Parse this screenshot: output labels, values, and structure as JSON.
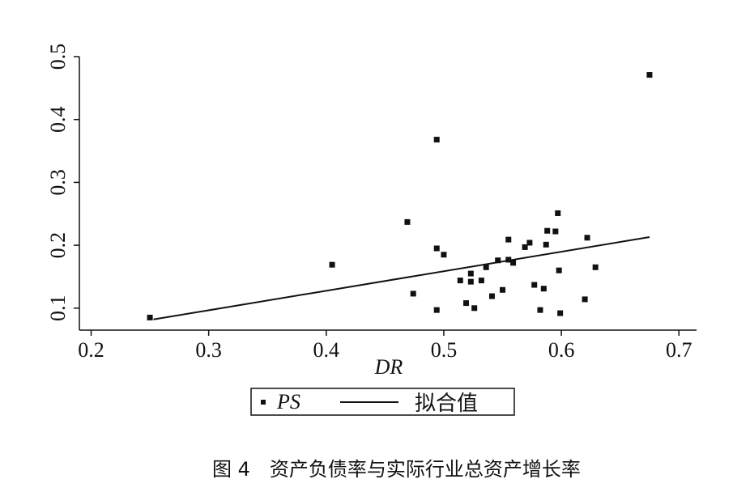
{
  "chart_data": {
    "type": "scatter",
    "x_label": "DR",
    "caption": "图 4　资产负债率与实际行业总资产增长率",
    "xlim": [
      0.19,
      0.715
    ],
    "ylim": [
      0.065,
      0.5
    ],
    "xticks": [
      0.2,
      0.3,
      0.4,
      0.5,
      0.6,
      0.7
    ],
    "yticks": [
      0.1,
      0.2,
      0.3,
      0.4,
      0.5
    ],
    "series": [
      {
        "name": "PS",
        "type": "scatter",
        "color": "#111",
        "x": [
          0.25,
          0.405,
          0.469,
          0.474,
          0.494,
          0.494,
          0.5,
          0.494,
          0.514,
          0.523,
          0.523,
          0.532,
          0.526,
          0.519,
          0.536,
          0.541,
          0.546,
          0.55,
          0.555,
          0.555,
          0.559,
          0.569,
          0.573,
          0.577,
          0.582,
          0.585,
          0.587,
          0.588,
          0.595,
          0.597,
          0.598,
          0.599,
          0.62,
          0.622,
          0.629,
          0.675
        ],
        "values": [
          0.085,
          0.169,
          0.237,
          0.123,
          0.368,
          0.195,
          0.185,
          0.097,
          0.144,
          0.155,
          0.142,
          0.144,
          0.1,
          0.108,
          0.165,
          0.119,
          0.176,
          0.129,
          0.177,
          0.209,
          0.172,
          0.197,
          0.204,
          0.137,
          0.097,
          0.131,
          0.201,
          0.223,
          0.222,
          0.251,
          0.16,
          0.092,
          0.114,
          0.212,
          0.165,
          0.471
        ]
      },
      {
        "name": "拟合值",
        "type": "line",
        "color": "#111",
        "x": [
          0.253,
          0.675
        ],
        "values": [
          0.082,
          0.213
        ]
      }
    ]
  }
}
